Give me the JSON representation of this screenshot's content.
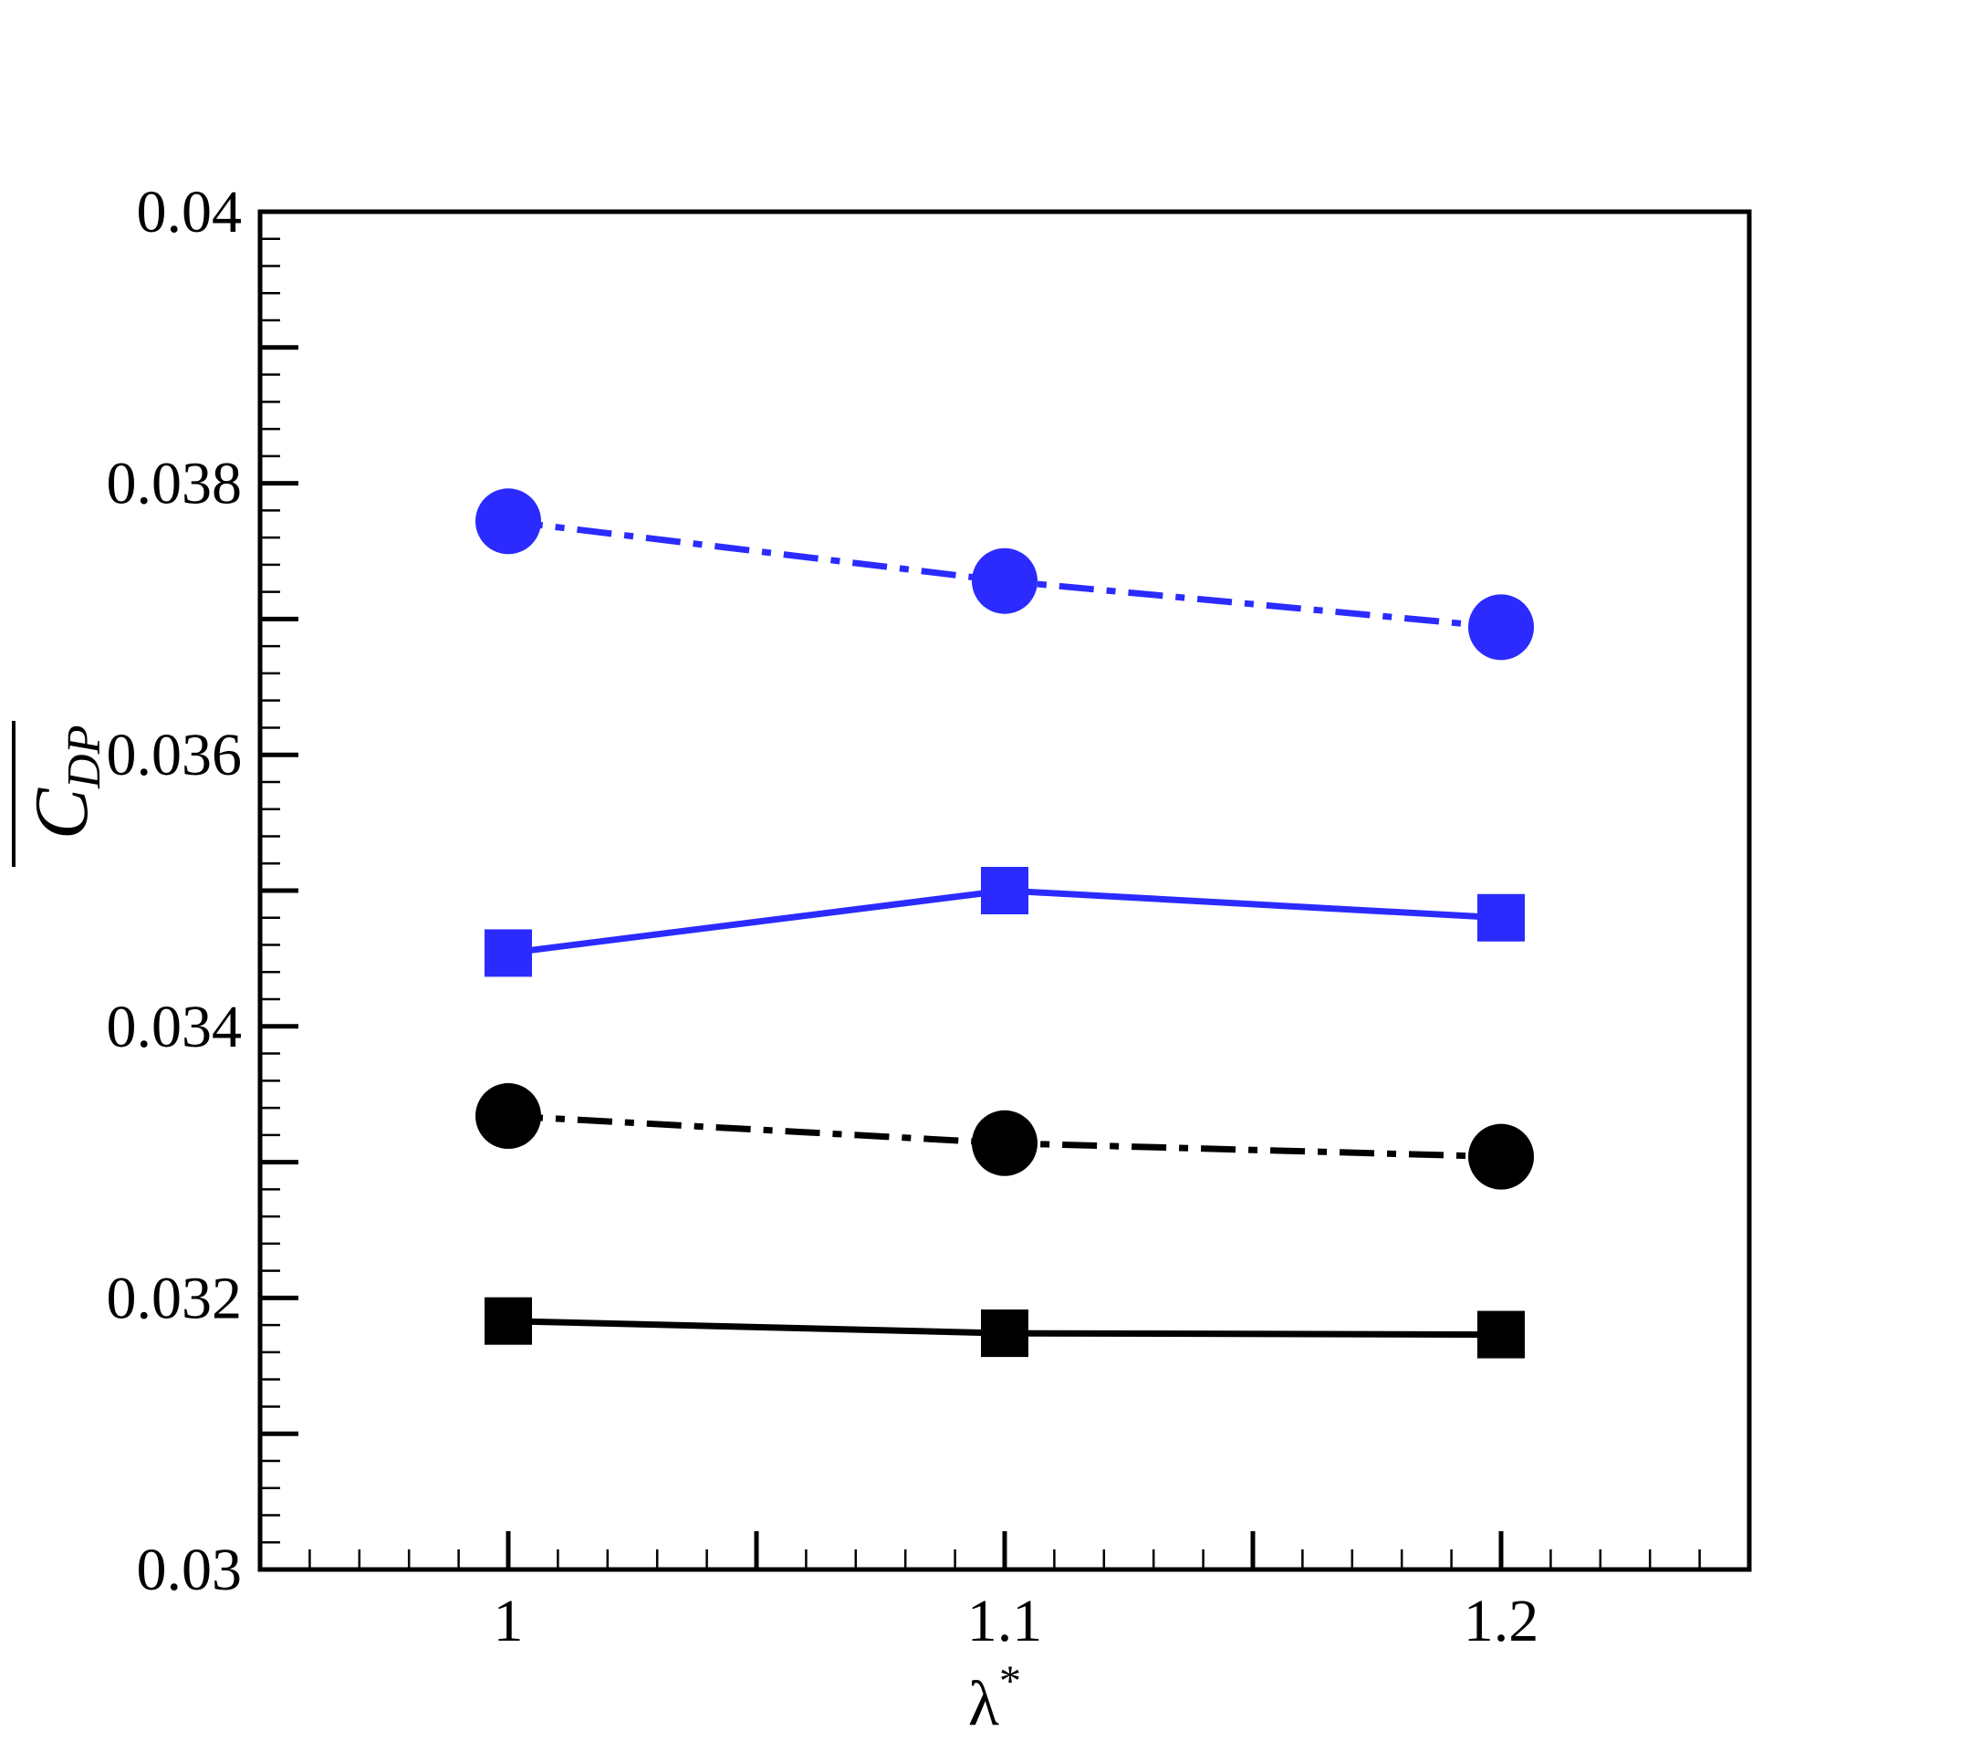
{
  "chart_data": {
    "type": "line",
    "title": "",
    "xlabel": "λ",
    "xlabel_superscript": "*",
    "ylabel": "C",
    "ylabel_subscript": "DP",
    "ylabel_overbar": true,
    "xlim": [
      0.95,
      1.25
    ],
    "ylim": [
      0.03,
      0.04
    ],
    "x_major_ticks": [
      1,
      1.05,
      1.1,
      1.15,
      1.2
    ],
    "x_tick_labels": [
      "1",
      "",
      "1.1",
      "",
      "1.2"
    ],
    "y_major_ticks": [
      0.03,
      0.031,
      0.032,
      0.033,
      0.034,
      0.035,
      0.036,
      0.037,
      0.038,
      0.039,
      0.04
    ],
    "y_tick_labels": [
      "0.03",
      "",
      "0.032",
      "",
      "0.034",
      "",
      "0.036",
      "",
      "0.038",
      "",
      "0.04"
    ],
    "grid": false,
    "legend": "none",
    "x": [
      1.0,
      1.1,
      1.2
    ],
    "series": [
      {
        "values": [
          0.03772,
          0.03728,
          0.03694
        ],
        "color": "#2b2bff",
        "marker": "circle",
        "line_style": "dash-dot"
      },
      {
        "values": [
          0.03454,
          0.035,
          0.0348
        ],
        "color": "#2b2bff",
        "marker": "square",
        "line_style": "solid"
      },
      {
        "values": [
          0.03334,
          0.03314,
          0.03304
        ],
        "color": "#000000",
        "marker": "circle",
        "line_style": "dash-dot"
      },
      {
        "values": [
          0.03183,
          0.03174,
          0.03173
        ],
        "color": "#000000",
        "marker": "square",
        "line_style": "solid"
      }
    ]
  }
}
